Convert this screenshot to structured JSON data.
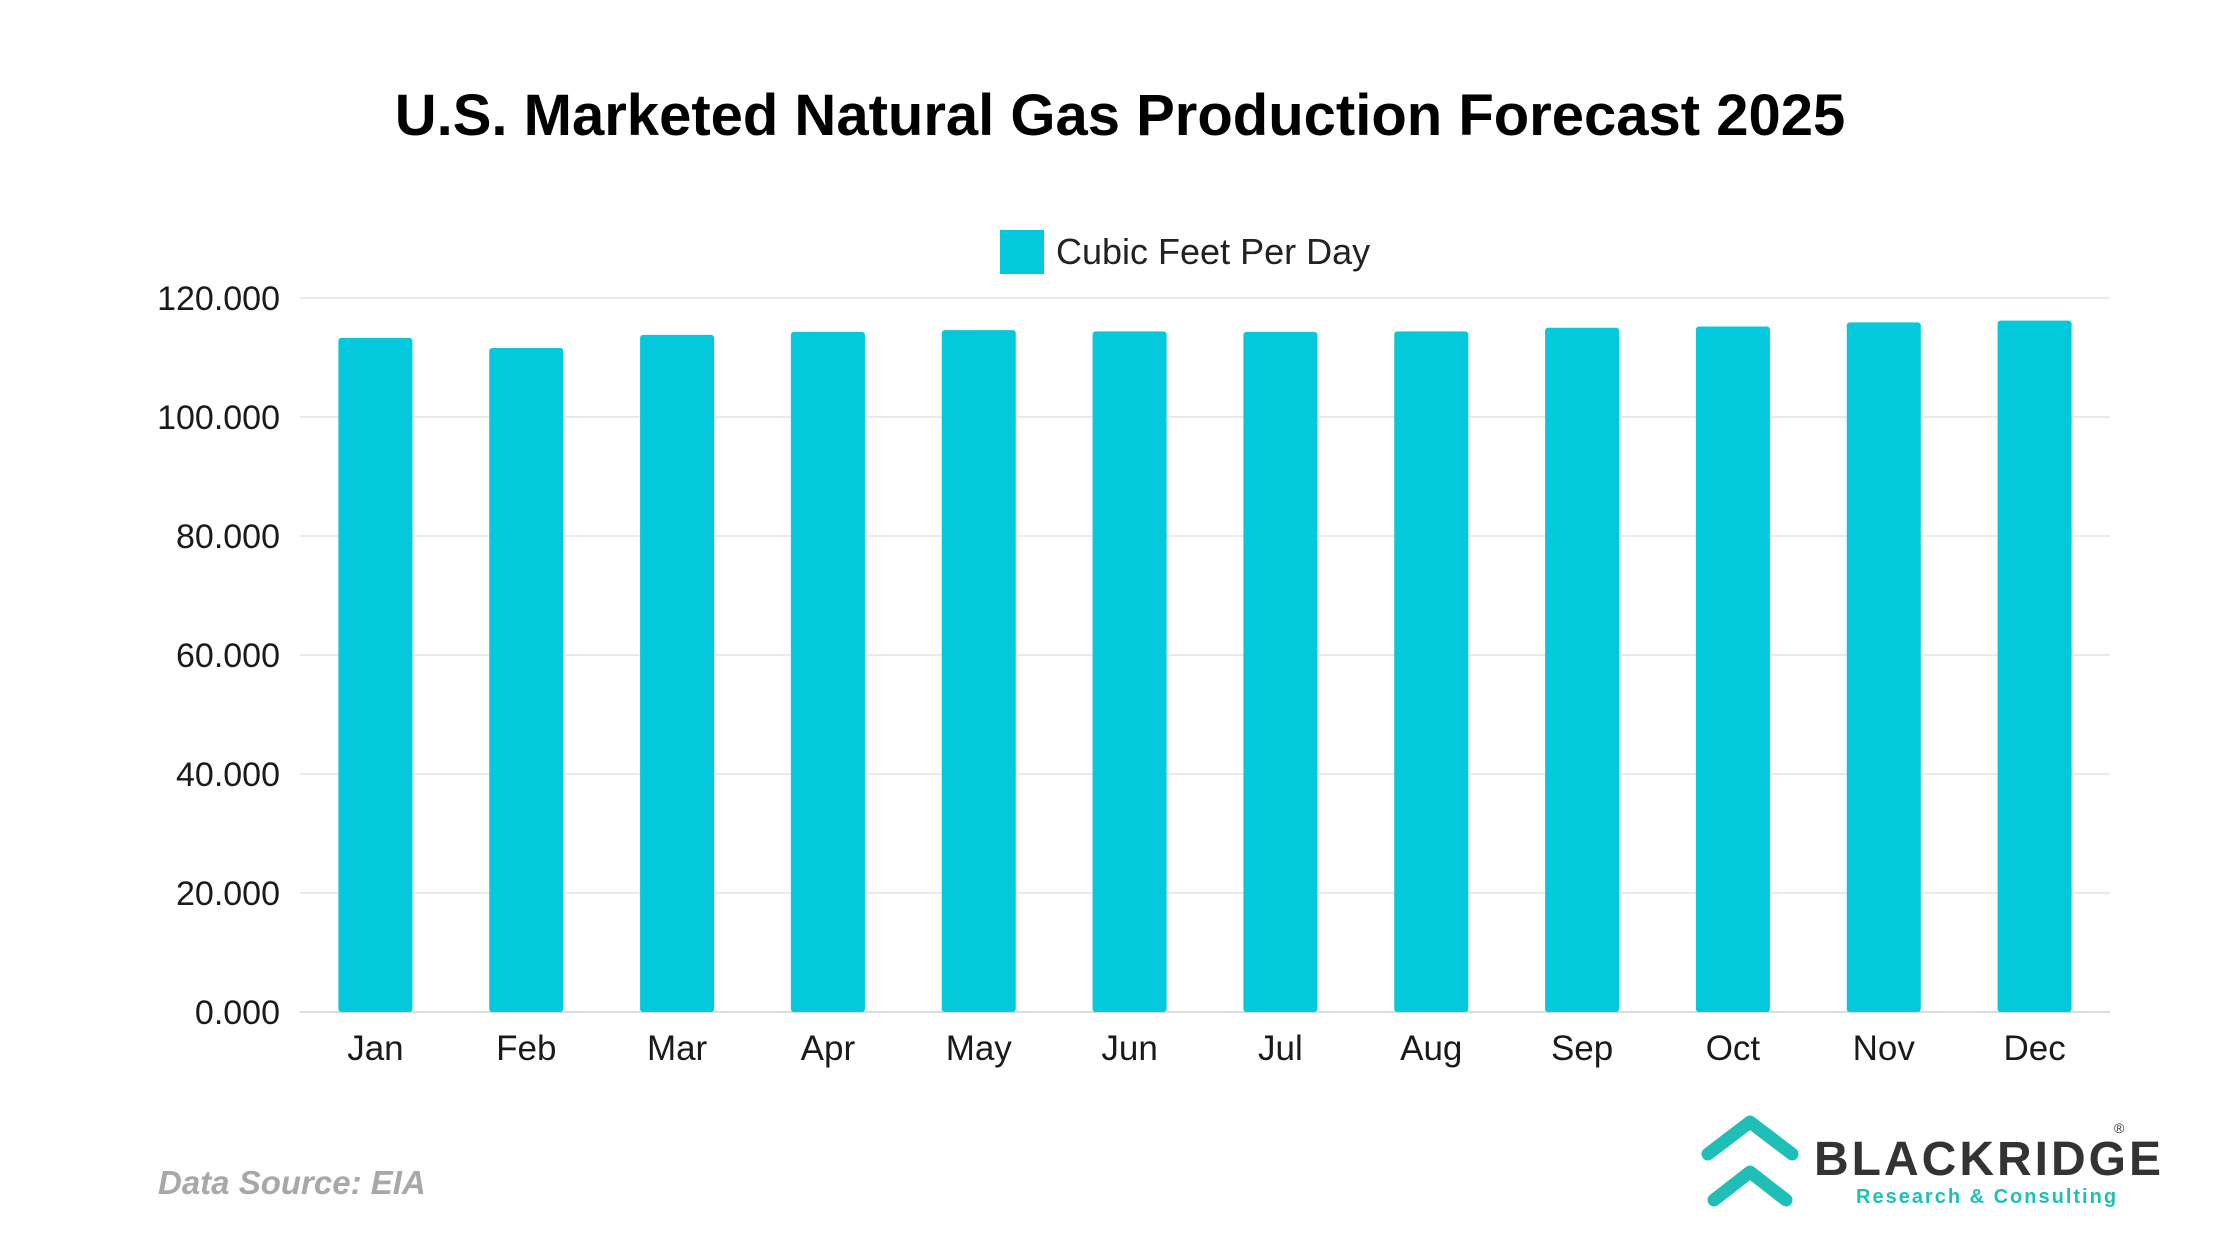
{
  "colors": {
    "bar": "#04c9dc",
    "grid": "#e3e3e3",
    "axis": "#d0d0d0",
    "logo_teal": "#1fbfb8"
  },
  "chart_data": {
    "type": "bar",
    "title": "U.S. Marketed Natural Gas Production Forecast 2025",
    "xlabel": "",
    "ylabel": "",
    "categories": [
      "Jan",
      "Feb",
      "Mar",
      "Apr",
      "May",
      "Jun",
      "Jul",
      "Aug",
      "Sep",
      "Oct",
      "Nov",
      "Dec"
    ],
    "series": [
      {
        "name": "Cubic Feet Per Day",
        "values": [
          113.3,
          111.6,
          113.8,
          114.3,
          114.6,
          114.4,
          114.3,
          114.4,
          115.0,
          115.2,
          115.9,
          116.2
        ]
      }
    ],
    "ylim": [
      0,
      120
    ],
    "yticks": [
      0,
      20,
      40,
      60,
      80,
      100,
      120
    ],
    "ytick_labels": [
      "0.000",
      "20.000",
      "40.000",
      "60.000",
      "80.000",
      "100.000",
      "120.000"
    ],
    "grid": true,
    "legend": "top"
  },
  "footer": {
    "data_source": "Data Source: EIA"
  },
  "logo": {
    "name": "BLACKRIDGE",
    "tagline": "Research & Consulting",
    "registered": "®",
    "icon": "chevron-up-icon"
  }
}
